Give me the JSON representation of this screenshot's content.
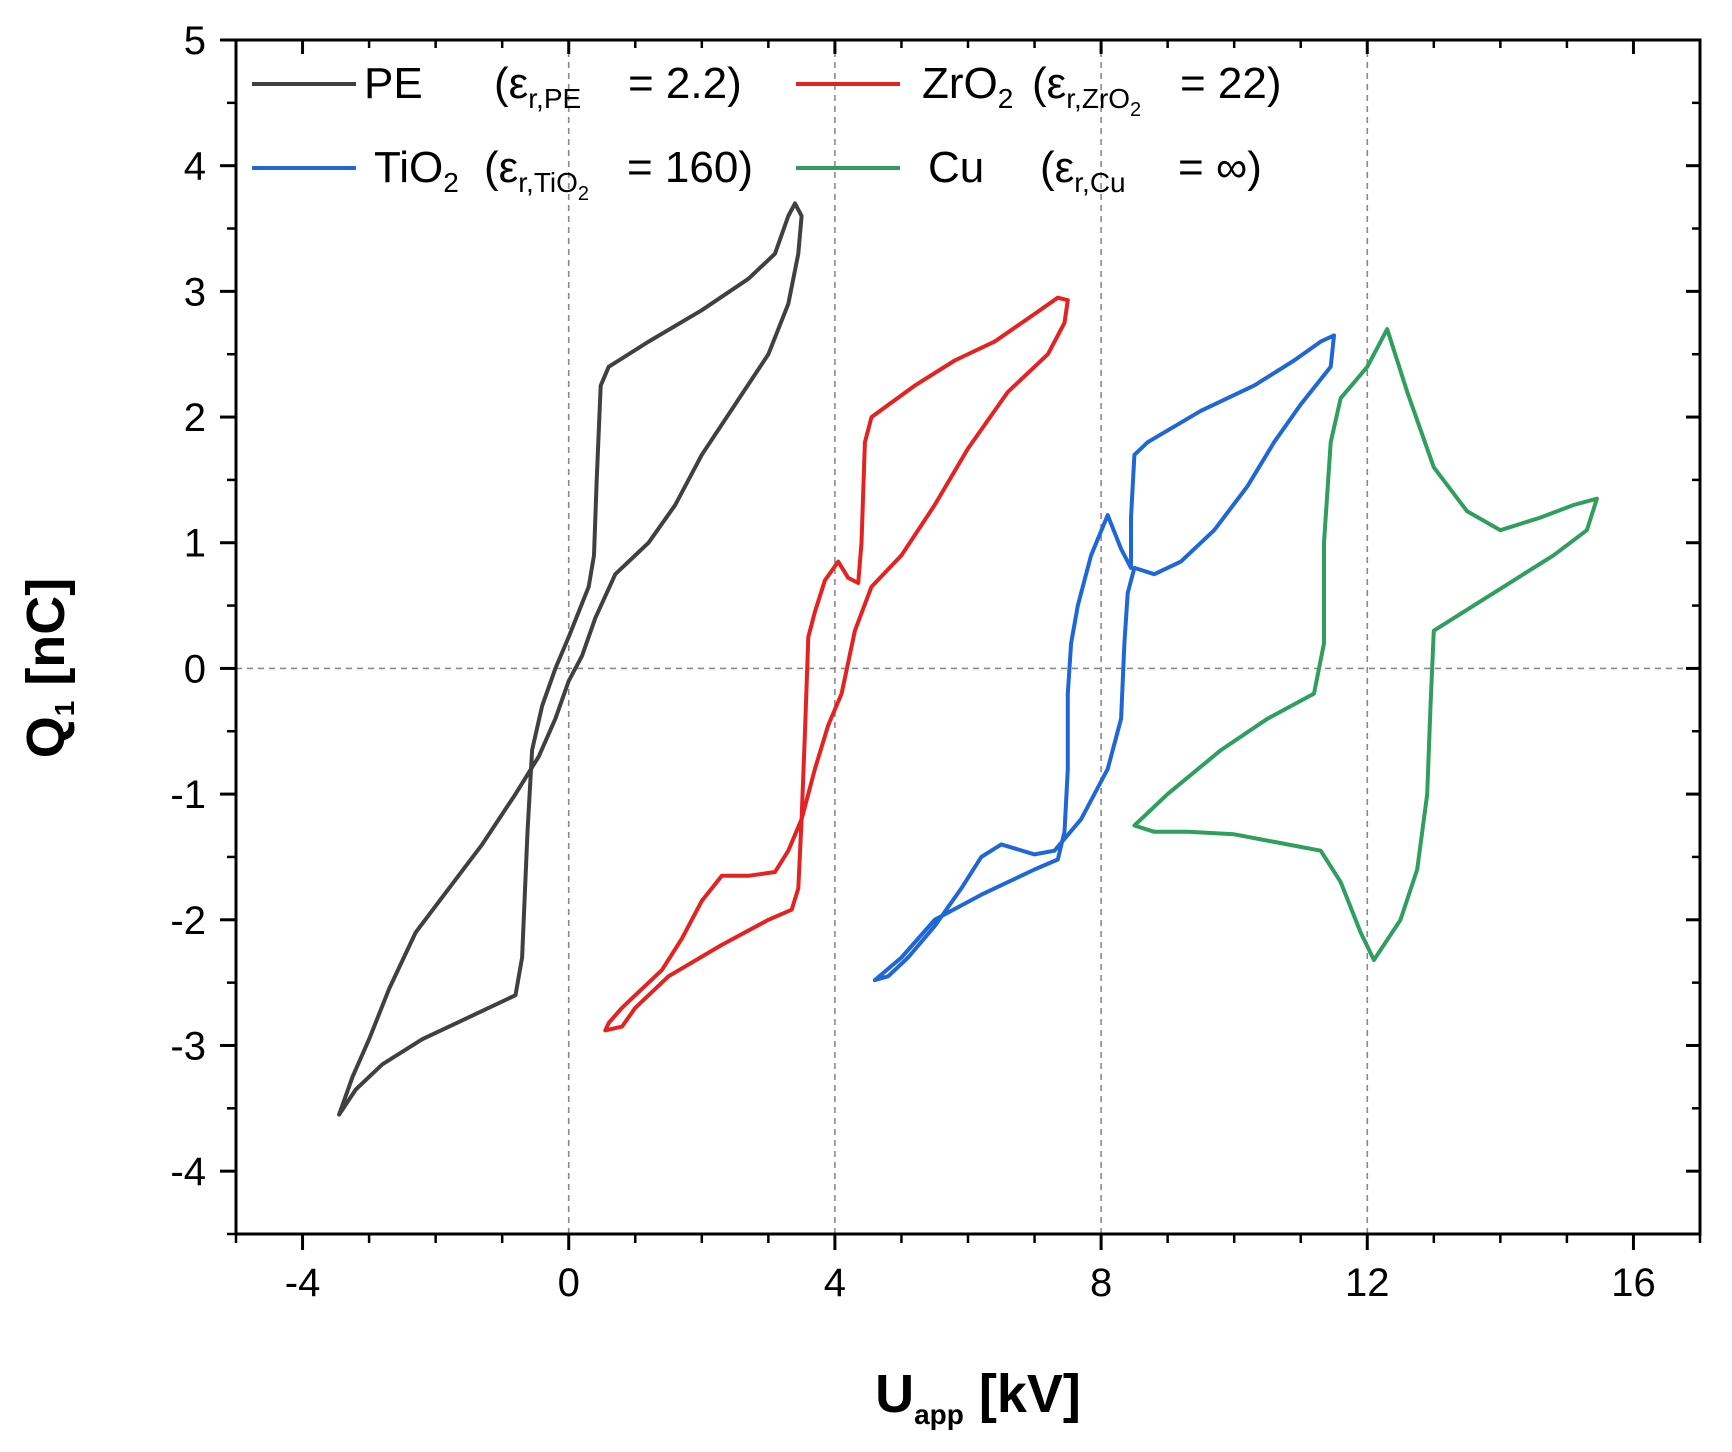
{
  "chart_data": {
    "type": "line",
    "title": "",
    "xlabel": {
      "main": "U",
      "sub": "app",
      "unit": "[kV]"
    },
    "ylabel": {
      "main": "Q",
      "sub": "1",
      "unit": "[nC]"
    },
    "xlim": [
      -5,
      17
    ],
    "ylim": [
      -4.5,
      5
    ],
    "xticks": [
      -4,
      0,
      4,
      8,
      12,
      16
    ],
    "xtick_labels": [
      "-4",
      "0",
      "4",
      "8",
      "12",
      "16"
    ],
    "yticks": [
      -4,
      -3,
      -2,
      -1,
      0,
      1,
      2,
      3,
      4,
      5
    ],
    "ytick_labels": [
      "-4",
      "-3",
      "-2",
      "-1",
      "0",
      "1",
      "2",
      "3",
      "4",
      "5"
    ],
    "reference_lines": {
      "x": [
        0,
        4,
        8,
        12
      ],
      "y": [
        0
      ]
    },
    "legend_position": "top",
    "series": [
      {
        "name": "PE",
        "color": "#404040",
        "legend": {
          "material": "PE",
          "material_sub": "",
          "eps_sub": "r,PE",
          "eps_subsub": "",
          "value": "= 2.2)"
        },
        "points": [
          [
            -3.45,
            -3.55
          ],
          [
            -3.2,
            -3.35
          ],
          [
            -2.8,
            -3.15
          ],
          [
            -2.2,
            -2.95
          ],
          [
            -1.4,
            -2.75
          ],
          [
            -0.8,
            -2.6
          ],
          [
            -0.7,
            -2.3
          ],
          [
            -0.62,
            -1.3
          ],
          [
            -0.55,
            -0.65
          ],
          [
            -0.4,
            -0.3
          ],
          [
            -0.2,
            0.0
          ],
          [
            0.0,
            0.25
          ],
          [
            0.15,
            0.45
          ],
          [
            0.3,
            0.65
          ],
          [
            0.38,
            0.9
          ],
          [
            0.42,
            1.5
          ],
          [
            0.48,
            2.25
          ],
          [
            0.6,
            2.4
          ],
          [
            1.2,
            2.6
          ],
          [
            2.0,
            2.85
          ],
          [
            2.7,
            3.1
          ],
          [
            3.1,
            3.3
          ],
          [
            3.3,
            3.6
          ],
          [
            3.4,
            3.7
          ],
          [
            3.5,
            3.6
          ],
          [
            3.45,
            3.3
          ],
          [
            3.3,
            2.9
          ],
          [
            3.0,
            2.5
          ],
          [
            2.5,
            2.1
          ],
          [
            2.0,
            1.7
          ],
          [
            1.6,
            1.3
          ],
          [
            1.2,
            1.0
          ],
          [
            0.7,
            0.75
          ],
          [
            0.4,
            0.4
          ],
          [
            0.2,
            0.1
          ],
          [
            0.0,
            -0.1
          ],
          [
            -0.2,
            -0.4
          ],
          [
            -0.45,
            -0.7
          ],
          [
            -0.8,
            -1.0
          ],
          [
            -1.3,
            -1.4
          ],
          [
            -1.8,
            -1.75
          ],
          [
            -2.3,
            -2.1
          ],
          [
            -2.7,
            -2.55
          ],
          [
            -3.0,
            -2.95
          ],
          [
            -3.25,
            -3.25
          ],
          [
            -3.45,
            -3.55
          ]
        ]
      },
      {
        "name": "ZrO2",
        "color": "#e52222",
        "legend": {
          "material": "ZrO",
          "material_sub": "2",
          "eps_sub": "r,ZrO",
          "eps_subsub": "2",
          "value": "= 22)"
        },
        "points": [
          [
            0.55,
            -2.88
          ],
          [
            0.8,
            -2.85
          ],
          [
            1.0,
            -2.7
          ],
          [
            1.5,
            -2.45
          ],
          [
            2.3,
            -2.2
          ],
          [
            3.0,
            -2.0
          ],
          [
            3.35,
            -1.92
          ],
          [
            3.45,
            -1.75
          ],
          [
            3.5,
            -1.2
          ],
          [
            3.55,
            -0.5
          ],
          [
            3.6,
            0.25
          ],
          [
            3.7,
            0.45
          ],
          [
            3.85,
            0.7
          ],
          [
            4.05,
            0.85
          ],
          [
            4.2,
            0.72
          ],
          [
            4.35,
            0.68
          ],
          [
            4.4,
            1.0
          ],
          [
            4.45,
            1.8
          ],
          [
            4.55,
            2.0
          ],
          [
            5.2,
            2.25
          ],
          [
            5.8,
            2.45
          ],
          [
            6.4,
            2.6
          ],
          [
            7.0,
            2.82
          ],
          [
            7.35,
            2.95
          ],
          [
            7.5,
            2.93
          ],
          [
            7.45,
            2.75
          ],
          [
            7.2,
            2.5
          ],
          [
            6.6,
            2.2
          ],
          [
            6.0,
            1.75
          ],
          [
            5.5,
            1.3
          ],
          [
            5.0,
            0.9
          ],
          [
            4.55,
            0.65
          ],
          [
            4.3,
            0.3
          ],
          [
            4.1,
            -0.2
          ],
          [
            3.9,
            -0.45
          ],
          [
            3.7,
            -0.8
          ],
          [
            3.5,
            -1.2
          ],
          [
            3.3,
            -1.45
          ],
          [
            3.1,
            -1.62
          ],
          [
            2.7,
            -1.65
          ],
          [
            2.3,
            -1.65
          ],
          [
            2.0,
            -1.85
          ],
          [
            1.7,
            -2.15
          ],
          [
            1.4,
            -2.4
          ],
          [
            1.1,
            -2.55
          ],
          [
            0.8,
            -2.7
          ],
          [
            0.6,
            -2.82
          ],
          [
            0.55,
            -2.88
          ]
        ]
      },
      {
        "name": "TiO2",
        "color": "#1f66d6",
        "legend": {
          "material": "TiO",
          "material_sub": "2",
          "eps_sub": "r,TiO",
          "eps_subsub": "2",
          "value": "= 160)"
        },
        "points": [
          [
            4.6,
            -2.48
          ],
          [
            5.0,
            -2.3
          ],
          [
            5.5,
            -2.0
          ],
          [
            6.2,
            -1.8
          ],
          [
            7.0,
            -1.6
          ],
          [
            7.35,
            -1.52
          ],
          [
            7.45,
            -1.3
          ],
          [
            7.5,
            -0.8
          ],
          [
            7.5,
            -0.2
          ],
          [
            7.55,
            0.2
          ],
          [
            7.65,
            0.5
          ],
          [
            7.85,
            0.9
          ],
          [
            8.1,
            1.22
          ],
          [
            8.3,
            0.95
          ],
          [
            8.45,
            0.8
          ],
          [
            8.45,
            1.2
          ],
          [
            8.5,
            1.7
          ],
          [
            8.7,
            1.8
          ],
          [
            9.5,
            2.05
          ],
          [
            10.3,
            2.25
          ],
          [
            10.9,
            2.45
          ],
          [
            11.3,
            2.6
          ],
          [
            11.5,
            2.65
          ],
          [
            11.45,
            2.4
          ],
          [
            11.0,
            2.1
          ],
          [
            10.6,
            1.8
          ],
          [
            10.2,
            1.45
          ],
          [
            9.7,
            1.1
          ],
          [
            9.2,
            0.85
          ],
          [
            8.8,
            0.75
          ],
          [
            8.5,
            0.8
          ],
          [
            8.4,
            0.6
          ],
          [
            8.35,
            0.2
          ],
          [
            8.3,
            -0.4
          ],
          [
            8.1,
            -0.8
          ],
          [
            7.7,
            -1.2
          ],
          [
            7.3,
            -1.45
          ],
          [
            7.0,
            -1.48
          ],
          [
            6.5,
            -1.4
          ],
          [
            6.2,
            -1.5
          ],
          [
            5.9,
            -1.75
          ],
          [
            5.5,
            -2.05
          ],
          [
            5.1,
            -2.3
          ],
          [
            4.8,
            -2.45
          ],
          [
            4.6,
            -2.48
          ]
        ]
      },
      {
        "name": "Cu",
        "color": "#2f9e5f",
        "legend": {
          "material": "Cu",
          "material_sub": "",
          "eps_sub": "r,Cu",
          "eps_subsub": "",
          "value": "=  ∞)"
        },
        "points": [
          [
            8.5,
            -1.25
          ],
          [
            9.0,
            -1.0
          ],
          [
            9.8,
            -0.65
          ],
          [
            10.5,
            -0.4
          ],
          [
            11.2,
            -0.2
          ],
          [
            11.35,
            0.2
          ],
          [
            11.35,
            1.0
          ],
          [
            11.45,
            1.8
          ],
          [
            11.6,
            2.15
          ],
          [
            12.0,
            2.4
          ],
          [
            12.3,
            2.7
          ],
          [
            12.6,
            2.2
          ],
          [
            13.0,
            1.6
          ],
          [
            13.5,
            1.25
          ],
          [
            14.0,
            1.1
          ],
          [
            14.6,
            1.2
          ],
          [
            15.1,
            1.3
          ],
          [
            15.45,
            1.35
          ],
          [
            15.3,
            1.1
          ],
          [
            14.8,
            0.9
          ],
          [
            14.2,
            0.7
          ],
          [
            13.6,
            0.5
          ],
          [
            13.0,
            0.3
          ],
          [
            12.95,
            -0.3
          ],
          [
            12.9,
            -1.0
          ],
          [
            12.75,
            -1.6
          ],
          [
            12.5,
            -2.0
          ],
          [
            12.1,
            -2.32
          ],
          [
            11.9,
            -2.1
          ],
          [
            11.6,
            -1.7
          ],
          [
            11.3,
            -1.45
          ],
          [
            10.8,
            -1.4
          ],
          [
            10.0,
            -1.32
          ],
          [
            9.3,
            -1.3
          ],
          [
            8.8,
            -1.3
          ],
          [
            8.5,
            -1.25
          ]
        ]
      }
    ]
  }
}
